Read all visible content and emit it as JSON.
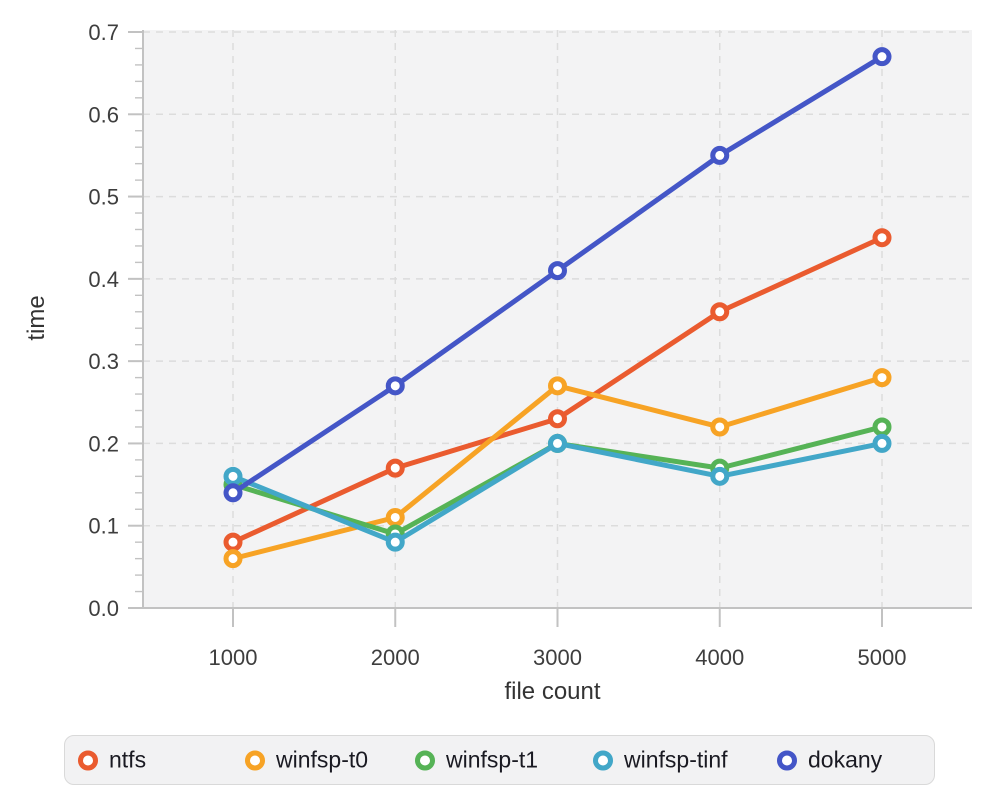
{
  "chart_data": {
    "type": "line",
    "title": "",
    "xlabel": "file count",
    "ylabel": "time",
    "x": [
      1000,
      2000,
      3000,
      4000,
      5000
    ],
    "xtick_labels": [
      "1000",
      "2000",
      "3000",
      "4000",
      "5000"
    ],
    "yticks": [
      0.0,
      0.1,
      0.2,
      0.3,
      0.4,
      0.5,
      0.6,
      0.7
    ],
    "ytick_labels": [
      "0.0",
      "0.1",
      "0.2",
      "0.3",
      "0.4",
      "0.5",
      "0.6",
      "0.7"
    ],
    "ylim": [
      0.0,
      0.7
    ],
    "y_minor_tick_step": 0.02,
    "grid": true,
    "grid_style": "dashed",
    "legend_position": "bottom",
    "marker_style": "open-circle",
    "series": [
      {
        "name": "ntfs",
        "color": "#EA5B2F",
        "values": [
          0.08,
          0.17,
          0.23,
          0.36,
          0.45
        ]
      },
      {
        "name": "winfsp-t0",
        "color": "#F7A325",
        "values": [
          0.06,
          0.11,
          0.27,
          0.22,
          0.28
        ]
      },
      {
        "name": "winfsp-t1",
        "color": "#56B356",
        "values": [
          0.15,
          0.09,
          0.2,
          0.17,
          0.22
        ]
      },
      {
        "name": "winfsp-tinf",
        "color": "#42A7C8",
        "values": [
          0.16,
          0.08,
          0.2,
          0.16,
          0.2
        ]
      },
      {
        "name": "dokany",
        "color": "#4456C7",
        "values": [
          0.14,
          0.27,
          0.41,
          0.55,
          0.67
        ]
      }
    ],
    "colors": {
      "plot_background": "#f3f3f4",
      "grid": "#dcdcdc",
      "axis": "#c2c2c2",
      "tick_label": "#3e3e3e",
      "axis_label": "#333333",
      "legend_text": "#1a1a22",
      "legend_background": "#f2f2f3",
      "legend_border": "#d9d9d9",
      "marker_fill": "#ffffff"
    }
  }
}
